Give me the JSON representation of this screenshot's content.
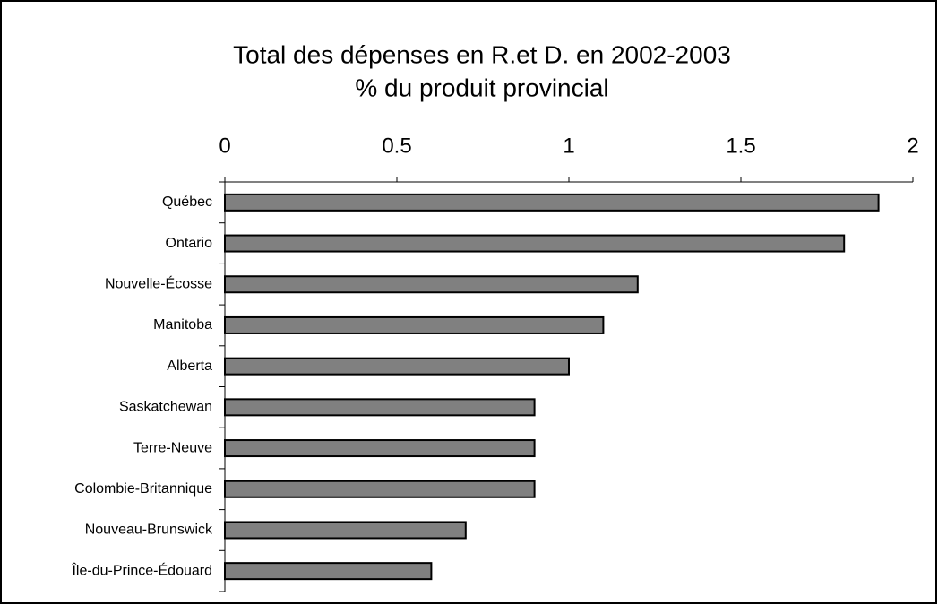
{
  "chart_data": {
    "type": "barh",
    "title": "Total des dépenses en R.et D. en 2002-2003",
    "subtitle": "% du produit provincial",
    "categories": [
      "Québec",
      "Ontario",
      "Nouvelle-Écosse",
      "Manitoba",
      "Alberta",
      "Saskatchewan",
      "Terre-Neuve",
      "Colombie-Britannique",
      "Nouveau-Brunswick",
      "Île-du-Prince-Édouard"
    ],
    "values": [
      1.9,
      1.8,
      1.2,
      1.1,
      1.0,
      0.9,
      0.9,
      0.9,
      0.7,
      0.6
    ],
    "color": "#808080",
    "xlim": [
      0,
      2
    ],
    "xticks": [
      0,
      0.5,
      1,
      1.5,
      2
    ]
  }
}
